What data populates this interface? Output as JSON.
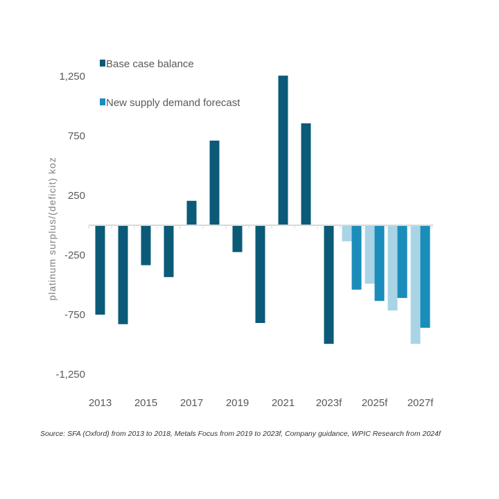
{
  "chart_data": {
    "type": "bar",
    "title": "",
    "ylabel": "platinum surplus/(deficit) koz",
    "xlabel": "",
    "ylim": [
      -1250,
      1250
    ],
    "yticks": [
      1250,
      750,
      250,
      -250,
      -750,
      -1250
    ],
    "ytick_labels": [
      "1,250",
      "750",
      "250",
      "-250",
      "-750",
      "-1,250"
    ],
    "categories": [
      "2013",
      "2014",
      "2015",
      "2016",
      "2017",
      "2018",
      "2019",
      "2020",
      "2021",
      "2022",
      "2023f",
      "2024f",
      "2025f",
      "2026f",
      "2027f"
    ],
    "xtick_labels": [
      "2013",
      "",
      "2015",
      "",
      "2017",
      "",
      "2019",
      "",
      "2021",
      "",
      "2023f",
      "",
      "2025f",
      "",
      "2027f"
    ],
    "series": [
      {
        "name": "Base case balance",
        "color": "#0b5a78",
        "values": [
          -750,
          -830,
          -335,
          -435,
          205,
          710,
          -225,
          -820,
          1255,
          855,
          -995,
          null,
          null,
          null,
          null
        ]
      },
      {
        "color": "#a8d4e6",
        "values": [
          null,
          null,
          null,
          null,
          null,
          null,
          null,
          null,
          null,
          null,
          null,
          -135,
          -490,
          -715,
          -995
        ]
      },
      {
        "name": "New supply demand forecast",
        "color": "#1a8dbb",
        "values": [
          null,
          null,
          null,
          null,
          null,
          null,
          null,
          null,
          null,
          null,
          null,
          -540,
          -635,
          -610,
          -860
        ]
      }
    ],
    "legend": [
      "Base case balance",
      "New supply demand forecast"
    ],
    "legend_position": "top-left",
    "grid": false
  },
  "source": "Source: SFA (Oxford) from 2013 to 2018, Metals Focus from 2019 to 2023f, Company guidance, WPIC Research from 2024f"
}
